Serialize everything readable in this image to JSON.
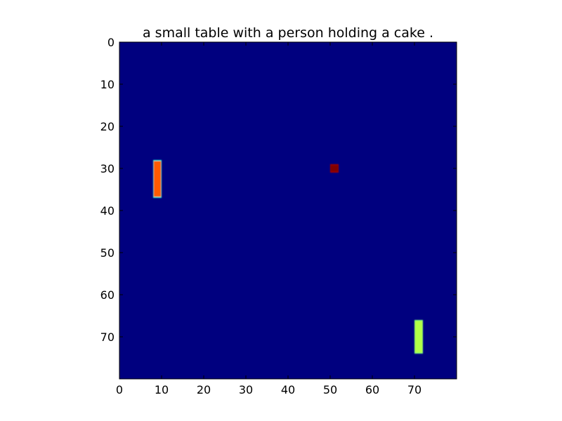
{
  "chart_data": {
    "type": "heatmap",
    "title": "a small table with a person holding a cake .",
    "xlabel": "",
    "ylabel": "",
    "grid": false,
    "xlim": [
      0,
      80
    ],
    "ylim": [
      80,
      0
    ],
    "x_ticks": [
      0,
      10,
      20,
      30,
      40,
      50,
      60,
      70
    ],
    "y_ticks": [
      0,
      10,
      20,
      30,
      40,
      50,
      60,
      70
    ],
    "background_color": "#00007f",
    "regions": [
      {
        "x0": 8,
        "x1": 10,
        "y0": 28,
        "y1": 37,
        "core_color": "#ff5a00",
        "edge_color": "#19ffe0",
        "value": 0.85
      },
      {
        "x0": 50,
        "x1": 52,
        "y0": 29,
        "y1": 31,
        "core_color": "#800000",
        "edge_color": "#a80000",
        "value": 1.0
      },
      {
        "x0": 70,
        "x1": 72,
        "y0": 66,
        "y1": 74,
        "core_color": "#b2ff46",
        "edge_color": "#7dff7a",
        "value": 0.62
      }
    ]
  }
}
